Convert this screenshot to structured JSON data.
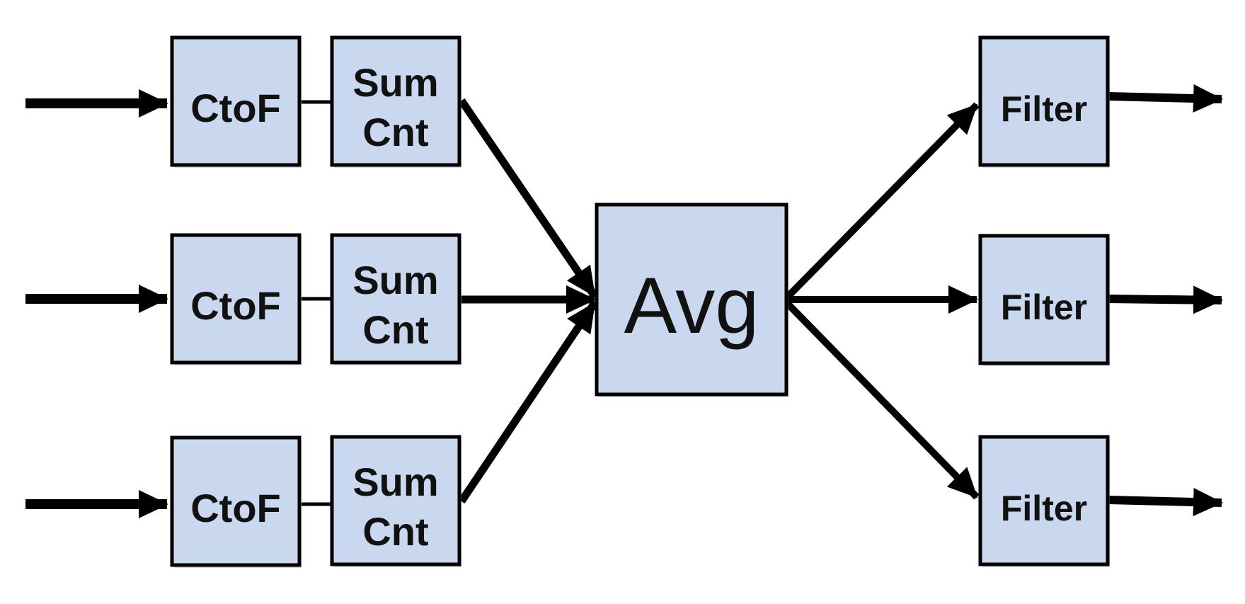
{
  "diagram": {
    "stages": {
      "convert": [
        "CtoF",
        "CtoF",
        "CtoF"
      ],
      "accumulate": [
        {
          "line1": "Sum",
          "line2": "Cnt"
        },
        {
          "line1": "Sum",
          "line2": "Cnt"
        },
        {
          "line1": "Sum",
          "line2": "Cnt"
        }
      ],
      "aggregate": "Avg",
      "filters": [
        "Filter",
        "Filter",
        "Filter"
      ]
    },
    "colors": {
      "box_fill": "#c9d8ee",
      "stroke": "#000000",
      "text": "#111111"
    }
  }
}
